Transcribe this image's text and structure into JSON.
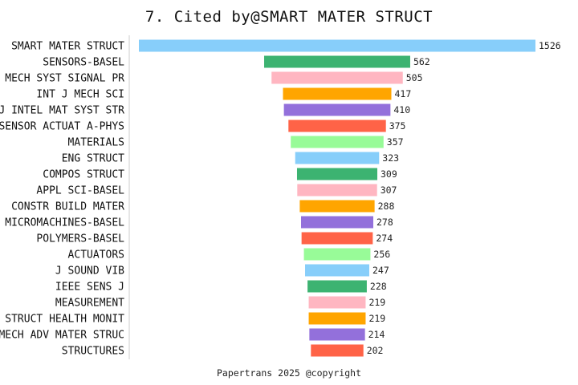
{
  "chart_data": {
    "type": "bar",
    "orientation": "horizontal",
    "title": "7. Cited by@SMART MATER STRUCT",
    "footer": "Papertrans 2025 @copyright",
    "categories": [
      "SMART MATER STRUCT",
      "SENSORS-BASEL",
      "MECH SYST SIGNAL PR",
      "INT J MECH SCI",
      "J INTEL MAT SYST STR",
      "SENSOR ACTUAT A-PHYS",
      "MATERIALS",
      "ENG STRUCT",
      "COMPOS STRUCT",
      "APPL SCI-BASEL",
      "CONSTR BUILD MATER",
      "MICROMACHINES-BASEL",
      "POLYMERS-BASEL",
      "ACTUATORS",
      "J SOUND VIB",
      "IEEE SENS J",
      "MEASUREMENT",
      "STRUCT HEALTH MONIT",
      "MECH ADV MATER STRUC",
      "STRUCTURES"
    ],
    "values": [
      1526,
      562,
      505,
      417,
      410,
      375,
      357,
      323,
      309,
      307,
      288,
      278,
      274,
      256,
      247,
      228,
      219,
      219,
      214,
      202
    ],
    "bar_colors": [
      "#87CEFA",
      "#3CB371",
      "#FFB6C1",
      "#FFA500",
      "#9370DB",
      "#FF6347",
      "#98FB98",
      "#87CEFA",
      "#3CB371",
      "#FFB6C1",
      "#FFA500",
      "#9370DB",
      "#FF6347",
      "#98FB98",
      "#87CEFA",
      "#3CB371",
      "#FFB6C1",
      "#FFA500",
      "#9370DB",
      "#FF6347"
    ],
    "bar_alignment": "centered",
    "xlim": [
      0,
      1526
    ],
    "grid": false,
    "legend": "none"
  }
}
